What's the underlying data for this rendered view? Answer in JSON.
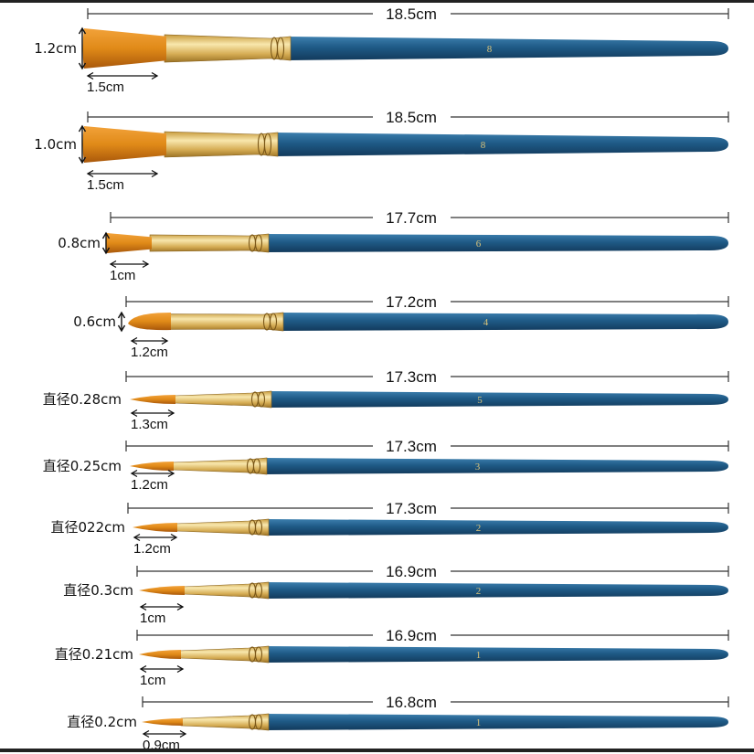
{
  "colors": {
    "handle": "#1f5a86",
    "handle_dark": "#173f63",
    "ferrule": "#d9b45a",
    "ferrule_light": "#f6e3a6",
    "bristle": "#e08a18",
    "bristle_dark": "#b8650f",
    "line": "#333333"
  },
  "brushes": [
    {
      "shape": "flat",
      "length": "18.5cm",
      "width": "1.2cm",
      "tip": "1.5cm",
      "handle_mark": "8"
    },
    {
      "shape": "flat",
      "length": "18.5cm",
      "width": "1.0cm",
      "tip": "1.5cm",
      "handle_mark": "8"
    },
    {
      "shape": "flat",
      "length": "17.7cm",
      "width": "0.8cm",
      "tip": "1cm",
      "handle_mark": "6"
    },
    {
      "shape": "filbert",
      "length": "17.2cm",
      "width": "0.6cm",
      "tip": "1.2cm",
      "handle_mark": "4"
    },
    {
      "shape": "round",
      "length": "17.3cm",
      "width": "直径0.28cm",
      "tip": "1.3cm",
      "handle_mark": "5"
    },
    {
      "shape": "round",
      "length": "17.3cm",
      "width": "直径0.25cm",
      "tip": "1.2cm",
      "handle_mark": "3"
    },
    {
      "shape": "round",
      "length": "17.3cm",
      "width": "直径022cm",
      "tip": "1.2cm",
      "handle_mark": "2"
    },
    {
      "shape": "round",
      "length": "16.9cm",
      "width": "直径0.3cm",
      "tip": "1cm",
      "handle_mark": "2"
    },
    {
      "shape": "round",
      "length": "16.9cm",
      "width": "直径0.21cm",
      "tip": "1cm",
      "handle_mark": "1"
    },
    {
      "shape": "round",
      "length": "16.8cm",
      "width": "直径0.2cm",
      "tip": "0.9cm",
      "handle_mark": "1"
    }
  ]
}
